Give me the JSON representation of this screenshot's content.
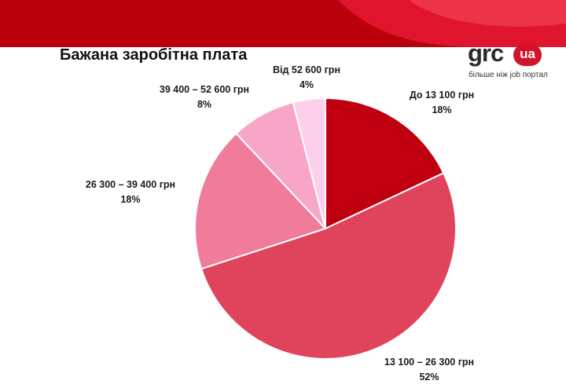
{
  "logo": {
    "name": "grc",
    "badge": "ua",
    "tagline": "більше ніж job портал"
  },
  "colors": {
    "header_red": "#b9000b",
    "header_swirl": "#e0142c"
  },
  "chart_data": {
    "type": "pie",
    "title": "Бажана заробітна плата",
    "start_angle_deg": 0,
    "direction": "clockwise",
    "slices": [
      {
        "label": "До 13 100 грн",
        "value": 18,
        "value_label": "18%",
        "color": "#c00010"
      },
      {
        "label": "13 100 – 26 300 грн",
        "value": 52,
        "value_label": "52%",
        "color": "#e0435c"
      },
      {
        "label": "26 300 – 39 400 грн",
        "value": 18,
        "value_label": "18%",
        "color": "#f07b9a"
      },
      {
        "label": "39 400 – 52 600 грн",
        "value": 8,
        "value_label": "8%",
        "color": "#f7a6c8"
      },
      {
        "label": "Від 52 600 грн",
        "value": 4,
        "value_label": "4%",
        "color": "#fcd0ea"
      }
    ]
  }
}
